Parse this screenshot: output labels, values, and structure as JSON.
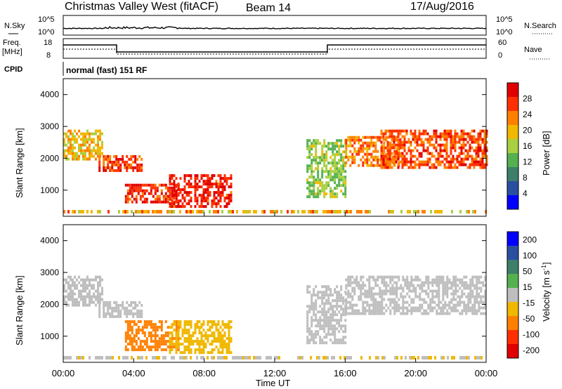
{
  "header": {
    "station": "Christmas Valley West (fitACF)",
    "beam": "Beam 14",
    "date": "17/Aug/2016"
  },
  "panels": {
    "nsky": {
      "left_label": "N.Sky",
      "right_label": "N.Search",
      "left_ticks": [
        "10^5",
        "10^0"
      ],
      "right_ticks": [
        "10^5",
        "10^0"
      ]
    },
    "freq": {
      "left_label_1": "Freq.",
      "left_label_2": "[MHz]",
      "right_label": "Nave",
      "left_ticks": [
        "18",
        "8"
      ],
      "right_ticks": [
        "60",
        "0"
      ]
    },
    "cpid": {
      "label": "CPID",
      "text": "normal (fast) 151 RF"
    }
  },
  "colors": {
    "power_scale": [
      "#0000ff",
      "#2a4fa0",
      "#3d7f6a",
      "#55b050",
      "#a8d040",
      "#f0b800",
      "#ff8000",
      "#ff3000",
      "#e00000"
    ],
    "velocity_scale": [
      "#0000ff",
      "#2a4fa0",
      "#3d7f6a",
      "#55b050",
      "#bebebe",
      "#f0b800",
      "#ff8000",
      "#ff3000",
      "#e00000"
    ]
  },
  "chart_data": [
    {
      "type": "heatmap",
      "name": "power",
      "ylabel": "Slant Range [km]",
      "yticks": [
        1000,
        2000,
        3000,
        4000
      ],
      "ylim": [
        180,
        4500
      ],
      "x_ticks": [
        "00:00",
        "04:00",
        "08:00",
        "12:00",
        "16:00",
        "20:00",
        "00:00"
      ],
      "x_range_hours": [
        0,
        24
      ],
      "colorbar": {
        "label": "Power [dB]",
        "ticks": [
          "4",
          "8",
          "12",
          "16",
          "20",
          "24",
          "28"
        ],
        "range": [
          0,
          30
        ]
      },
      "regions": [
        {
          "t": [
            0.0,
            2.2
          ],
          "r": [
            2000,
            2900
          ],
          "v": 18
        },
        {
          "t": [
            2.0,
            4.5
          ],
          "r": [
            1600,
            2100
          ],
          "v": 25
        },
        {
          "t": [
            3.5,
            6.5
          ],
          "r": [
            600,
            1200
          ],
          "v": 26
        },
        {
          "t": [
            6.0,
            9.5
          ],
          "r": [
            500,
            1500
          ],
          "v": 27
        },
        {
          "t": [
            13.8,
            16.0
          ],
          "r": [
            800,
            2600
          ],
          "v": 14
        },
        {
          "t": [
            16.0,
            19.0
          ],
          "r": [
            1800,
            2700
          ],
          "v": 22
        },
        {
          "t": [
            18.0,
            24.0
          ],
          "r": [
            1700,
            2900
          ],
          "v": 24
        }
      ]
    },
    {
      "type": "heatmap",
      "name": "velocity",
      "ylabel": "Slant Range [km]",
      "yticks": [
        1000,
        2000,
        3000,
        4000
      ],
      "ylim": [
        180,
        4500
      ],
      "x_ticks": [
        "00:00",
        "04:00",
        "08:00",
        "12:00",
        "16:00",
        "20:00",
        "00:00"
      ],
      "xlabel": "Time UT",
      "x_range_hours": [
        0,
        24
      ],
      "colorbar": {
        "label": "Velocity [m s^-1]",
        "ticks": [
          "200",
          "100",
          "50",
          "15",
          "-15",
          "-50",
          "-100",
          "-200"
        ]
      },
      "regions": [
        {
          "t": [
            0.0,
            2.2
          ],
          "r": [
            2000,
            2900
          ],
          "v": 0
        },
        {
          "t": [
            2.0,
            4.5
          ],
          "r": [
            1600,
            2100
          ],
          "v": -10
        },
        {
          "t": [
            3.5,
            6.5
          ],
          "r": [
            600,
            1500
          ],
          "v": -60
        },
        {
          "t": [
            6.0,
            9.5
          ],
          "r": [
            500,
            1500
          ],
          "v": -40
        },
        {
          "t": [
            13.8,
            16.0
          ],
          "r": [
            800,
            2600
          ],
          "v": 0
        },
        {
          "t": [
            16.0,
            24.0
          ],
          "r": [
            1700,
            2900
          ],
          "v": 0
        }
      ]
    }
  ]
}
